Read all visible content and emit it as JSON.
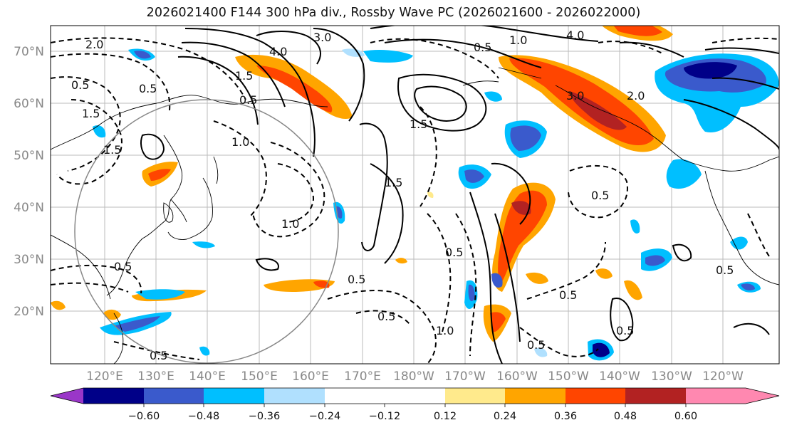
{
  "title": "2026021400 F144 300 hPa div., Rossby Wave PC (2026021600 - 2026022000)",
  "map": {
    "lat_labels": [
      "70°N",
      "60°N",
      "50°N",
      "40°N",
      "30°N",
      "20°N"
    ],
    "lon_labels": [
      "120°E",
      "130°E",
      "140°E",
      "150°E",
      "160°E",
      "170°E",
      "180°W",
      "170°W",
      "160°W",
      "150°W",
      "140°W",
      "130°W",
      "120°W"
    ],
    "contour_labels": [
      "4.0",
      "3.0",
      "1.5",
      "2.0",
      "0.5",
      "0.5",
      "1.5",
      "1.0",
      "1.5",
      "0.5",
      "1.5",
      "1.0",
      "0.5",
      "0.5",
      "0.5",
      "1.0",
      "0.5",
      "0.5",
      "4.0",
      "1.0",
      "0.5",
      "3.0",
      "2.0",
      "1.5",
      "0.5",
      "0.5",
      "0.5",
      "0.5",
      "0.5"
    ]
  },
  "colorbar": {
    "colors": [
      "#9a36c8",
      "#000088",
      "#3a5acc",
      "#00bfff",
      "#b0e0fe",
      "#ffffff",
      "#ffea8c",
      "#ffa500",
      "#ff4500",
      "#b22222",
      "#ff88b0"
    ],
    "ticks": [
      "−0.60",
      "−0.48",
      "−0.36",
      "−0.24",
      "−0.12",
      "0.12",
      "0.24",
      "0.36",
      "0.48",
      "0.60"
    ]
  }
}
